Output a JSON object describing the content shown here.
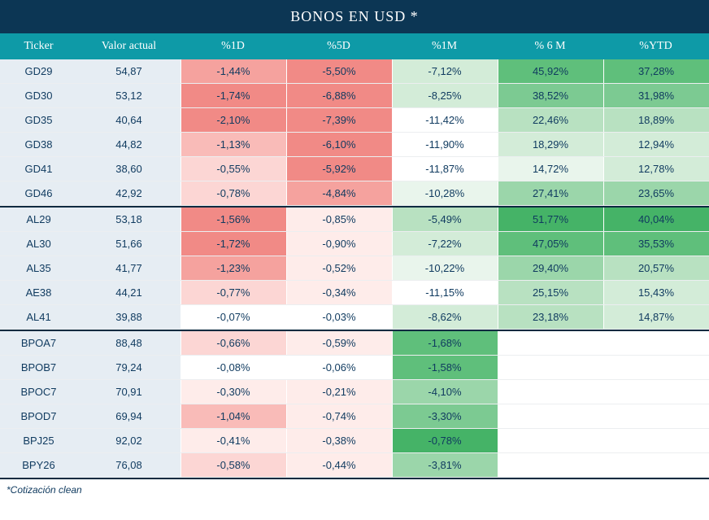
{
  "title": "BONOS EN USD *",
  "footnote": "*Cotización clean",
  "columns": [
    "Ticker",
    "Valor actual",
    "%1D",
    "%5D",
    "%1M",
    "% 6 M",
    "%YTD"
  ],
  "palette": {
    "title_bg": "#0c3654",
    "header_bg": "#0e9aa7",
    "tv_bg": "#e6edf3",
    "text": "#0f3a5f",
    "neg5": "#f18a86",
    "neg4": "#f5a29e",
    "neg3": "#f9bbb8",
    "neg2": "#fcd6d4",
    "neg1": "#feecea",
    "neu": "#ffffff",
    "pos1": "#e9f5ec",
    "pos2": "#d3ecd8",
    "pos3": "#b8e1c1",
    "pos4": "#9bd6aa",
    "pos5": "#7cca92",
    "pos6": "#5fbf7b",
    "pos7": "#45b367"
  },
  "sections": [
    {
      "rows": [
        {
          "ticker": "GD29",
          "value": "54,87",
          "cells": [
            {
              "t": "-1,44%",
              "c": "neg4"
            },
            {
              "t": "-5,50%",
              "c": "neg5"
            },
            {
              "t": "-7,12%",
              "c": "pos2"
            },
            {
              "t": "45,92%",
              "c": "pos6"
            },
            {
              "t": "37,28%",
              "c": "pos6"
            }
          ]
        },
        {
          "ticker": "GD30",
          "value": "53,12",
          "cells": [
            {
              "t": "-1,74%",
              "c": "neg5"
            },
            {
              "t": "-6,88%",
              "c": "neg5"
            },
            {
              "t": "-8,25%",
              "c": "pos2"
            },
            {
              "t": "38,52%",
              "c": "pos5"
            },
            {
              "t": "31,98%",
              "c": "pos5"
            }
          ]
        },
        {
          "ticker": "GD35",
          "value": "40,64",
          "cells": [
            {
              "t": "-2,10%",
              "c": "neg5"
            },
            {
              "t": "-7,39%",
              "c": "neg5"
            },
            {
              "t": "-11,42%",
              "c": "neu"
            },
            {
              "t": "22,46%",
              "c": "pos3"
            },
            {
              "t": "18,89%",
              "c": "pos3"
            }
          ]
        },
        {
          "ticker": "GD38",
          "value": "44,82",
          "cells": [
            {
              "t": "-1,13%",
              "c": "neg3"
            },
            {
              "t": "-6,10%",
              "c": "neg5"
            },
            {
              "t": "-11,90%",
              "c": "neu"
            },
            {
              "t": "18,29%",
              "c": "pos2"
            },
            {
              "t": "12,94%",
              "c": "pos2"
            }
          ]
        },
        {
          "ticker": "GD41",
          "value": "38,60",
          "cells": [
            {
              "t": "-0,55%",
              "c": "neg2"
            },
            {
              "t": "-5,92%",
              "c": "neg5"
            },
            {
              "t": "-11,87%",
              "c": "neu"
            },
            {
              "t": "14,72%",
              "c": "pos1"
            },
            {
              "t": "12,78%",
              "c": "pos2"
            }
          ]
        },
        {
          "ticker": "GD46",
          "value": "42,92",
          "cells": [
            {
              "t": "-0,78%",
              "c": "neg2"
            },
            {
              "t": "-4,84%",
              "c": "neg4"
            },
            {
              "t": "-10,28%",
              "c": "pos1"
            },
            {
              "t": "27,41%",
              "c": "pos4"
            },
            {
              "t": "23,65%",
              "c": "pos4"
            }
          ]
        }
      ]
    },
    {
      "rows": [
        {
          "ticker": "AL29",
          "value": "53,18",
          "cells": [
            {
              "t": "-1,56%",
              "c": "neg5"
            },
            {
              "t": "-0,85%",
              "c": "neg1"
            },
            {
              "t": "-5,49%",
              "c": "pos3"
            },
            {
              "t": "51,77%",
              "c": "pos7"
            },
            {
              "t": "40,04%",
              "c": "pos7"
            }
          ]
        },
        {
          "ticker": "AL30",
          "value": "51,66",
          "cells": [
            {
              "t": "-1,72%",
              "c": "neg5"
            },
            {
              "t": "-0,90%",
              "c": "neg1"
            },
            {
              "t": "-7,22%",
              "c": "pos2"
            },
            {
              "t": "47,05%",
              "c": "pos6"
            },
            {
              "t": "35,53%",
              "c": "pos6"
            }
          ]
        },
        {
          "ticker": "AL35",
          "value": "41,77",
          "cells": [
            {
              "t": "-1,23%",
              "c": "neg4"
            },
            {
              "t": "-0,52%",
              "c": "neg1"
            },
            {
              "t": "-10,22%",
              "c": "pos1"
            },
            {
              "t": "29,40%",
              "c": "pos4"
            },
            {
              "t": "20,57%",
              "c": "pos3"
            }
          ]
        },
        {
          "ticker": "AE38",
          "value": "44,21",
          "cells": [
            {
              "t": "-0,77%",
              "c": "neg2"
            },
            {
              "t": "-0,34%",
              "c": "neg1"
            },
            {
              "t": "-11,15%",
              "c": "neu"
            },
            {
              "t": "25,15%",
              "c": "pos3"
            },
            {
              "t": "15,43%",
              "c": "pos2"
            }
          ]
        },
        {
          "ticker": "AL41",
          "value": "39,88",
          "cells": [
            {
              "t": "-0,07%",
              "c": "neu"
            },
            {
              "t": "-0,03%",
              "c": "neu"
            },
            {
              "t": "-8,62%",
              "c": "pos2"
            },
            {
              "t": "23,18%",
              "c": "pos3"
            },
            {
              "t": "14,87%",
              "c": "pos2"
            }
          ]
        }
      ]
    },
    {
      "rows": [
        {
          "ticker": "BPOA7",
          "value": "88,48",
          "cells": [
            {
              "t": "-0,66%",
              "c": "neg2"
            },
            {
              "t": "-0,59%",
              "c": "neg1"
            },
            {
              "t": "-1,68%",
              "c": "pos6"
            },
            {
              "t": "",
              "c": "neu"
            },
            {
              "t": "",
              "c": "neu"
            }
          ]
        },
        {
          "ticker": "BPOB7",
          "value": "79,24",
          "cells": [
            {
              "t": "-0,08%",
              "c": "neu"
            },
            {
              "t": "-0,06%",
              "c": "neu"
            },
            {
              "t": "-1,58%",
              "c": "pos6"
            },
            {
              "t": "",
              "c": "neu"
            },
            {
              "t": "",
              "c": "neu"
            }
          ]
        },
        {
          "ticker": "BPOC7",
          "value": "70,91",
          "cells": [
            {
              "t": "-0,30%",
              "c": "neg1"
            },
            {
              "t": "-0,21%",
              "c": "neg1"
            },
            {
              "t": "-4,10%",
              "c": "pos4"
            },
            {
              "t": "",
              "c": "neu"
            },
            {
              "t": "",
              "c": "neu"
            }
          ]
        },
        {
          "ticker": "BPOD7",
          "value": "69,94",
          "cells": [
            {
              "t": "-1,04%",
              "c": "neg3"
            },
            {
              "t": "-0,74%",
              "c": "neg1"
            },
            {
              "t": "-3,30%",
              "c": "pos5"
            },
            {
              "t": "",
              "c": "neu"
            },
            {
              "t": "",
              "c": "neu"
            }
          ]
        },
        {
          "ticker": "BPJ25",
          "value": "92,02",
          "cells": [
            {
              "t": "-0,41%",
              "c": "neg1"
            },
            {
              "t": "-0,38%",
              "c": "neg1"
            },
            {
              "t": "-0,78%",
              "c": "pos7"
            },
            {
              "t": "",
              "c": "neu"
            },
            {
              "t": "",
              "c": "neu"
            }
          ]
        },
        {
          "ticker": "BPY26",
          "value": "76,08",
          "cells": [
            {
              "t": "-0,58%",
              "c": "neg2"
            },
            {
              "t": "-0,44%",
              "c": "neg1"
            },
            {
              "t": "-3,81%",
              "c": "pos4"
            },
            {
              "t": "",
              "c": "neu"
            },
            {
              "t": "",
              "c": "neu"
            }
          ]
        }
      ]
    }
  ]
}
